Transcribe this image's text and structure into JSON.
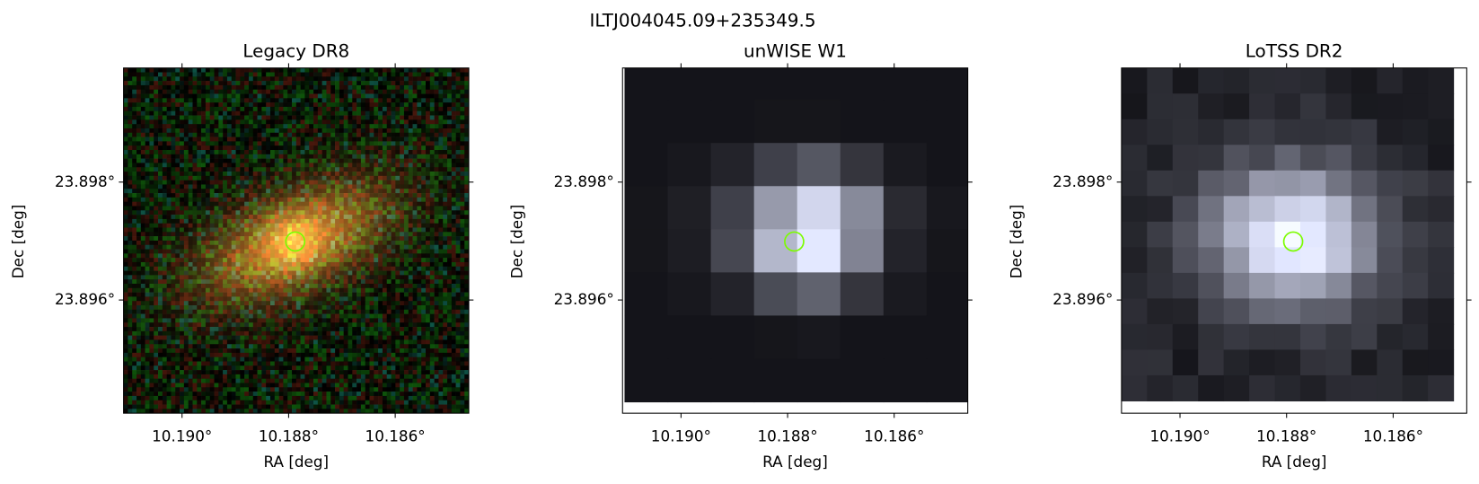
{
  "title": "ILTJ004045.09+235349.5",
  "panels": [
    {
      "title": "Legacy DR8",
      "xlabel": "RA [deg]",
      "ylabel": "Dec [deg]",
      "xticks": [
        "10.190°",
        "10.188°",
        "10.186°"
      ],
      "yticks": [
        "23.898°",
        "23.896°"
      ]
    },
    {
      "title": "unWISE W1",
      "xlabel": "RA [deg]",
      "ylabel": "Dec [deg]",
      "xticks": [
        "10.190°",
        "10.188°",
        "10.186°"
      ],
      "yticks": [
        "23.898°",
        "23.896°"
      ]
    },
    {
      "title": "LoTSS DR2",
      "xlabel": "RA [deg]",
      "ylabel": "Dec [deg]",
      "xticks": [
        "10.190°",
        "10.188°",
        "10.186°"
      ],
      "yticks": [
        "23.898°",
        "23.896°"
      ]
    }
  ]
}
